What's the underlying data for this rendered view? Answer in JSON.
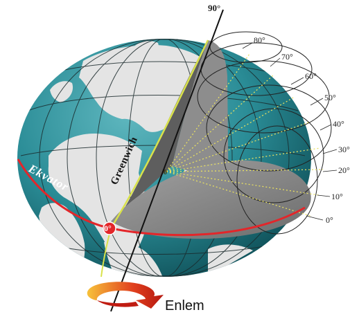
{
  "diagram": {
    "axis_top_label": "90°",
    "latitude_labels": [
      "80°",
      "70°",
      "60°",
      "50°",
      "40°",
      "30°",
      "20°",
      "10°",
      "0°"
    ],
    "meridian_label": "Greenwich",
    "equator_label": "Ekvator",
    "origin_label": "0°",
    "angle_label": "0",
    "caption": "Enlem",
    "colors": {
      "ocean": "#2a8c96",
      "land": "#e6e6e6",
      "equator": "#e3262a",
      "meridian": "#d9e24a",
      "cut_plane": "#8a8a8a",
      "cut_dark": "#5e5e5e",
      "latitude_rays": "#e8e060",
      "arrow": "#d8301c"
    }
  }
}
